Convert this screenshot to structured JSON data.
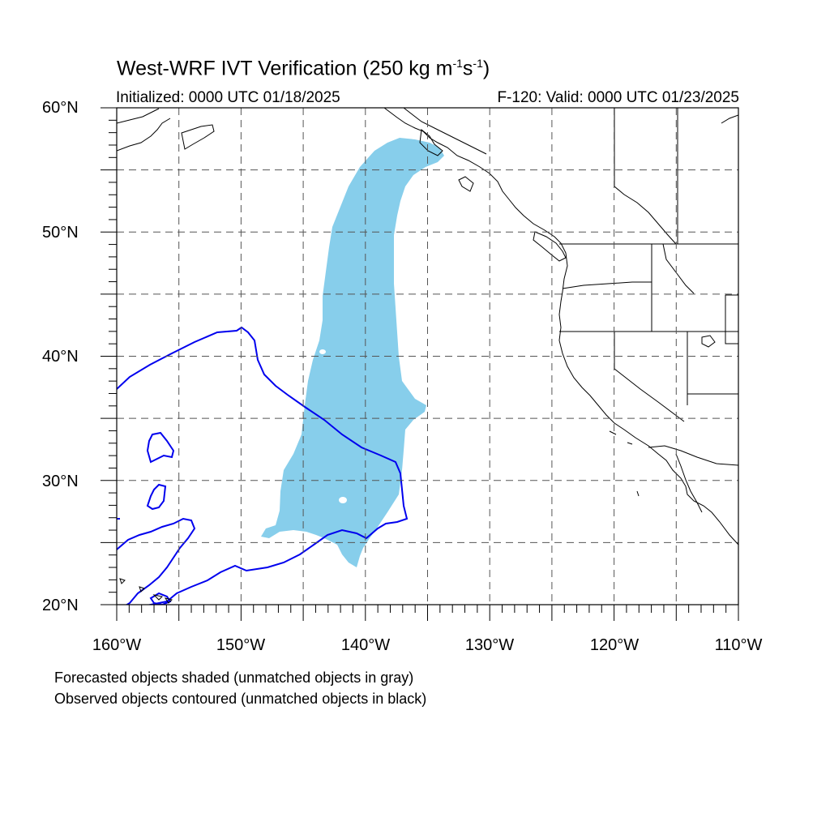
{
  "title": {
    "main": "West-WRF IVT Verification (250 kg m",
    "exp1": "-1",
    "mid": "s",
    "exp2": "-1",
    "end": ")"
  },
  "initialized": "Initialized: 0000 UTC 01/18/2025",
  "valid": "F-120: Valid: 0000 UTC 01/23/2025",
  "lat_labels": [
    "60°N",
    "50°N",
    "40°N",
    "30°N",
    "20°N"
  ],
  "lon_labels": [
    "160°W",
    "150°W",
    "140°W",
    "130°W",
    "120°W",
    "110°W"
  ],
  "notes": [
    "Forecasted objects shaded (unmatched objects in gray)",
    "Observed objects contoured (unmatched objects in black)"
  ],
  "map": {
    "lon_range": [
      -160,
      -110
    ],
    "lat_range": [
      20,
      60
    ],
    "grid_lons": [
      -155,
      -150,
      -145,
      -140,
      -135,
      -130,
      -125,
      -120,
      -115
    ],
    "grid_lats": [
      25,
      30,
      35,
      40,
      45,
      50,
      55
    ],
    "colors": {
      "forecast_fill": "#87ceeb",
      "observed_contour": "#0000ee",
      "coastline": "#000000",
      "grid": "#555555"
    }
  }
}
